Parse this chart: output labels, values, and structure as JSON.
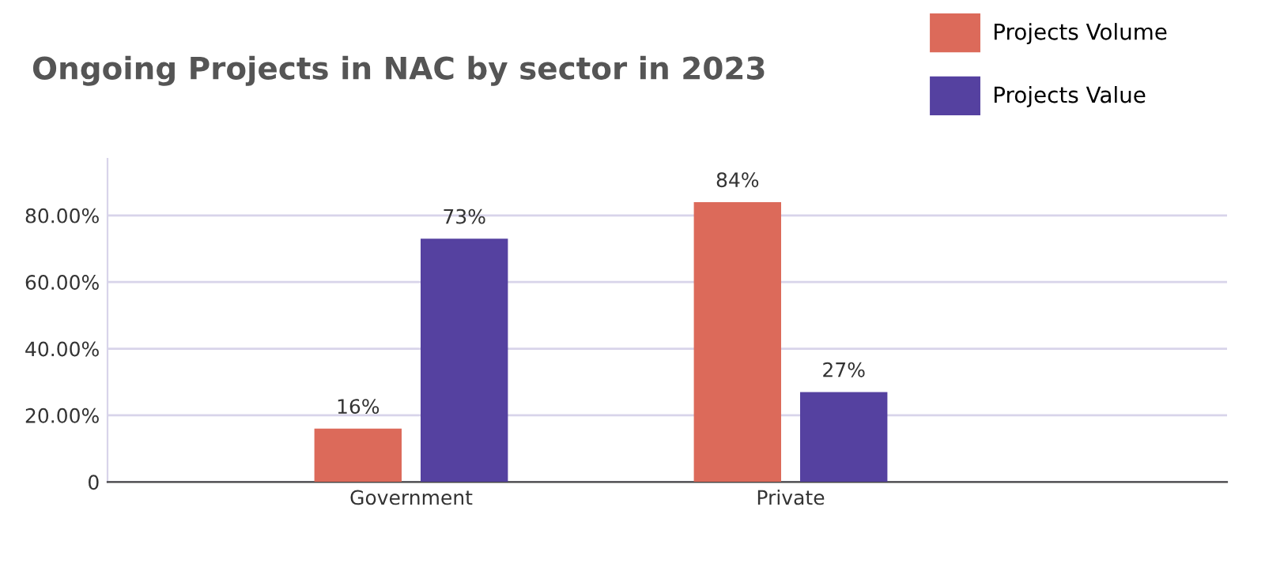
{
  "chart_data": {
    "type": "bar",
    "title": "Ongoing Projects in NAC by sector in 2023",
    "categories": [
      "Government",
      "Private"
    ],
    "series": [
      {
        "name": "Projects Volume",
        "color": "#dc6a5a",
        "values": [
          16,
          84
        ],
        "value_labels": [
          "16%",
          "84%"
        ]
      },
      {
        "name": "Projects Value",
        "color": "#5541a0",
        "values": [
          73,
          27
        ],
        "value_labels": [
          "73%",
          "27%"
        ]
      }
    ],
    "ylim": [
      0,
      97
    ],
    "yticks": [
      0,
      {
        "value": 20,
        "label": "20.00%"
      },
      {
        "value": 40,
        "label": "40.00%"
      },
      {
        "value": 60,
        "label": "60.00%"
      },
      {
        "value": 80,
        "label": "80.00%"
      }
    ],
    "grid": "y",
    "legend": "top right"
  }
}
